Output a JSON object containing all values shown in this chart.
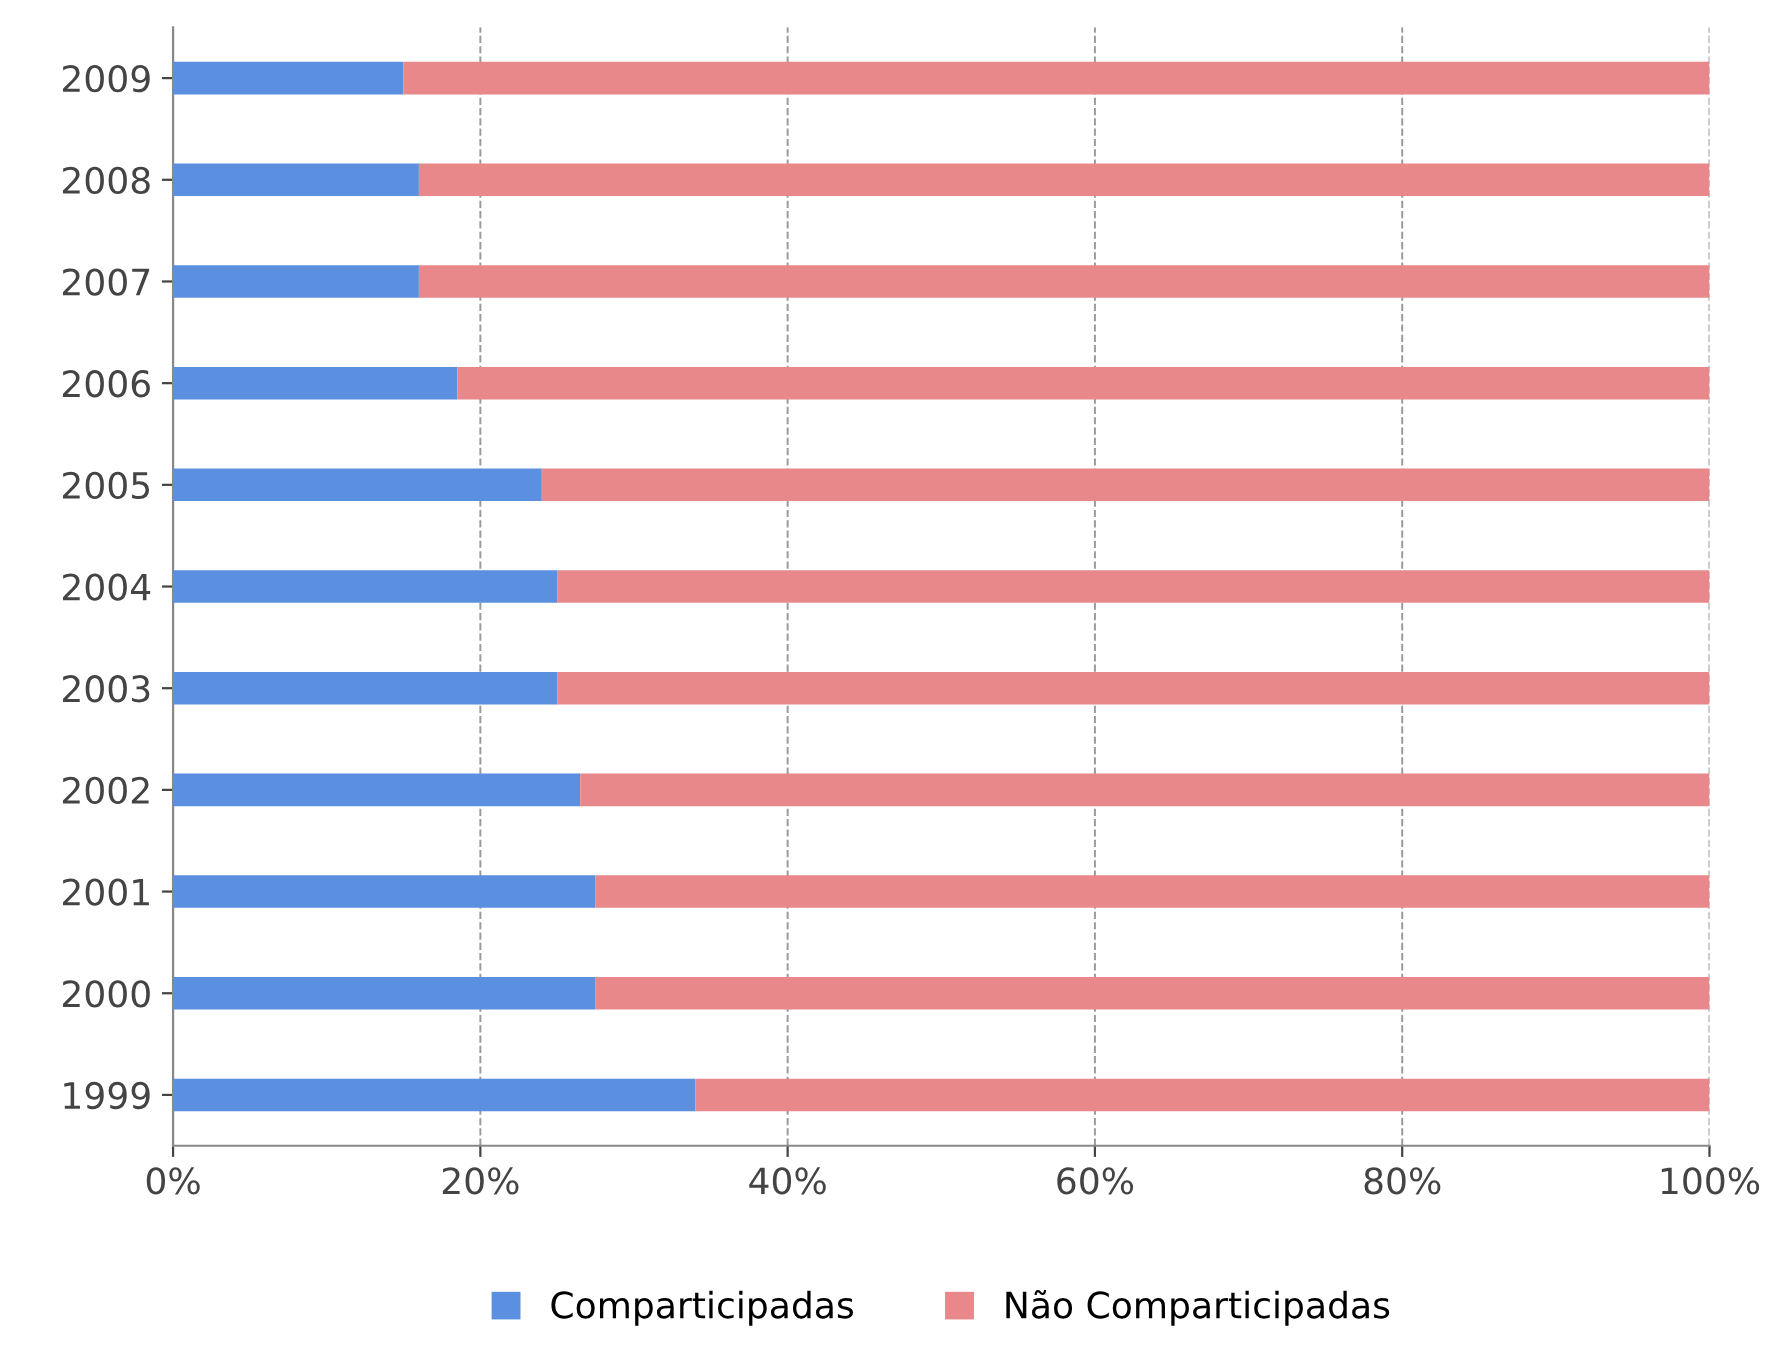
{
  "chart_data": {
    "type": "bar",
    "orientation": "horizontal",
    "stacked": true,
    "categories": [
      "2009",
      "2008",
      "2007",
      "2006",
      "2005",
      "2004",
      "2003",
      "2002",
      "2001",
      "2000",
      "1999"
    ],
    "series": [
      {
        "name": "Comparticipadas",
        "color": "#5b8fe0",
        "values": [
          15,
          16,
          16,
          18.5,
          24,
          25,
          25,
          26.5,
          27.5,
          27.5,
          34
        ]
      },
      {
        "name": "Não Comparticipadas",
        "color": "#e8888a",
        "values": [
          85,
          84,
          84,
          81.5,
          76,
          75,
          75,
          73.5,
          72.5,
          72.5,
          66
        ]
      }
    ],
    "xlim": [
      0,
      100
    ],
    "xticks": [
      {
        "value": 0,
        "label": "0%"
      },
      {
        "value": 20,
        "label": "20%"
      },
      {
        "value": 40,
        "label": "40%"
      },
      {
        "value": 60,
        "label": "60%"
      },
      {
        "value": 80,
        "label": "80%"
      },
      {
        "value": 100,
        "label": "100%"
      }
    ],
    "grid": "x",
    "legend": "bottom",
    "line_style": "dashed"
  }
}
